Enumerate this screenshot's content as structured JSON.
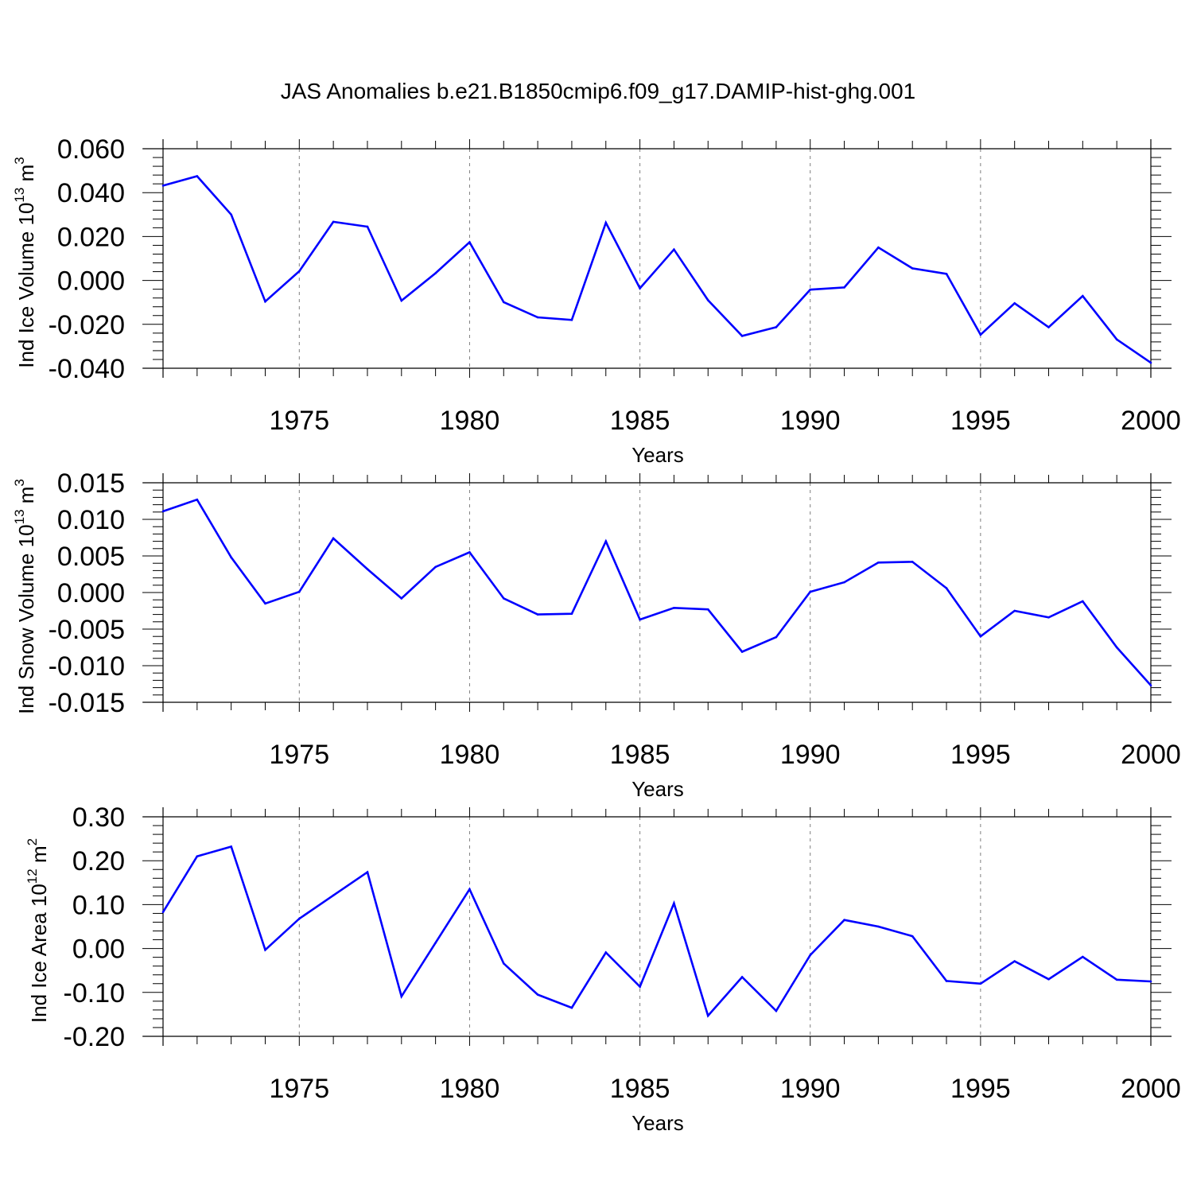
{
  "figure_title": "JAS Anomalies b.e21.B1850cmip6.f09_g17.DAMIP-hist-ghg.001",
  "colors": {
    "line": "#0000ff",
    "axis": "#000000",
    "grid": "#7f7f7f"
  },
  "chart_data": [
    {
      "type": "line",
      "ylabel_main": "Ind Ice Volume 10",
      "ylabel_exp": "13",
      "ylabel_unit": " m",
      "ylabel_unit_exp": "3",
      "xlabel": "Years",
      "xlim": [
        1971,
        2000
      ],
      "ylim": [
        -0.04,
        0.06
      ],
      "yticks": [
        -0.04,
        -0.02,
        0.0,
        0.02,
        0.04,
        0.06
      ],
      "ytick_labels": [
        "-0.040",
        "-0.020",
        "0.000",
        "0.020",
        "0.040",
        "0.060"
      ],
      "xticks": [
        1975,
        1980,
        1985,
        1990,
        1995,
        2000
      ],
      "xtick_labels": [
        "1975",
        "1980",
        "1985",
        "1990",
        "1995",
        "2000"
      ],
      "x": [
        1971,
        1972,
        1973,
        1974,
        1975,
        1976,
        1977,
        1978,
        1979,
        1980,
        1981,
        1982,
        1983,
        1984,
        1985,
        1986,
        1987,
        1988,
        1989,
        1990,
        1991,
        1992,
        1993,
        1994,
        1995,
        1996,
        1997,
        1998,
        1999,
        2000
      ],
      "y": [
        0.0432,
        0.0475,
        0.03,
        -0.0096,
        0.0042,
        0.0267,
        0.0245,
        -0.0092,
        0.0033,
        0.0174,
        -0.0099,
        -0.0168,
        -0.018,
        0.0263,
        -0.0036,
        0.0141,
        -0.009,
        -0.0253,
        -0.0213,
        -0.0042,
        -0.0032,
        0.015,
        0.0055,
        0.003,
        -0.0247,
        -0.0104,
        -0.0213,
        -0.0071,
        -0.0269,
        -0.0375
      ]
    },
    {
      "type": "line",
      "ylabel_main": "Ind Snow Volume 10",
      "ylabel_exp": "13",
      "ylabel_unit": " m",
      "ylabel_unit_exp": "3",
      "xlabel": "Years",
      "xlim": [
        1971,
        2000
      ],
      "ylim": [
        -0.015,
        0.015
      ],
      "yticks": [
        -0.015,
        -0.01,
        -0.005,
        0.0,
        0.005,
        0.01,
        0.015
      ],
      "ytick_labels": [
        "-0.015",
        "-0.010",
        "-0.005",
        "0.000",
        "0.005",
        "0.010",
        "0.015"
      ],
      "xticks": [
        1975,
        1980,
        1985,
        1990,
        1995,
        2000
      ],
      "xtick_labels": [
        "1975",
        "1980",
        "1985",
        "1990",
        "1995",
        "2000"
      ],
      "x": [
        1971,
        1972,
        1973,
        1974,
        1975,
        1976,
        1977,
        1978,
        1979,
        1980,
        1981,
        1982,
        1983,
        1984,
        1985,
        1986,
        1987,
        1988,
        1989,
        1990,
        1991,
        1992,
        1993,
        1994,
        1995,
        1996,
        1997,
        1998,
        1999,
        2000
      ],
      "y": [
        0.0111,
        0.0127,
        0.0048,
        -0.0015,
        0.0001,
        0.0074,
        0.0032,
        -0.0008,
        0.0035,
        0.0055,
        -0.0008,
        -0.003,
        -0.0029,
        0.007,
        -0.0037,
        -0.0021,
        -0.0023,
        -0.0081,
        -0.0061,
        0.0001,
        0.0014,
        0.0041,
        0.0042,
        0.0006,
        -0.006,
        -0.0025,
        -0.0034,
        -0.0012,
        -0.0075,
        -0.0127
      ]
    },
    {
      "type": "line",
      "ylabel_main": "Ind Ice Area 10",
      "ylabel_exp": "12",
      "ylabel_unit": " m",
      "ylabel_unit_exp": "2",
      "xlabel": "Years",
      "xlim": [
        1971,
        2000
      ],
      "ylim": [
        -0.2,
        0.3
      ],
      "yticks": [
        -0.2,
        -0.1,
        0.0,
        0.1,
        0.2,
        0.3
      ],
      "ytick_labels": [
        "-0.20",
        "-0.10",
        "0.00",
        "0.10",
        "0.20",
        "0.30"
      ],
      "xticks": [
        1975,
        1980,
        1985,
        1990,
        1995,
        2000
      ],
      "xtick_labels": [
        "1975",
        "1980",
        "1985",
        "1990",
        "1995",
        "2000"
      ],
      "x": [
        1971,
        1972,
        1973,
        1974,
        1975,
        1976,
        1977,
        1978,
        1979,
        1980,
        1981,
        1982,
        1983,
        1984,
        1985,
        1986,
        1987,
        1988,
        1989,
        1990,
        1991,
        1992,
        1993,
        1994,
        1995,
        1996,
        1997,
        1998,
        1999,
        2000
      ],
      "y": [
        0.083,
        0.21,
        0.232,
        -0.003,
        0.068,
        0.121,
        0.174,
        -0.109,
        0.013,
        0.135,
        -0.034,
        -0.105,
        -0.135,
        -0.009,
        -0.087,
        0.103,
        -0.153,
        -0.065,
        -0.142,
        -0.015,
        0.065,
        0.05,
        0.028,
        -0.074,
        -0.08,
        -0.029,
        -0.07,
        -0.019,
        -0.071,
        -0.075
      ]
    }
  ]
}
